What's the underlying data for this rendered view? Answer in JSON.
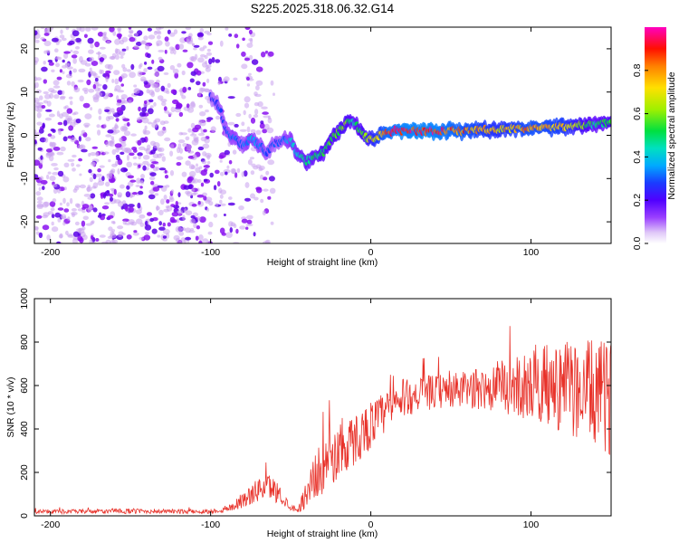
{
  "title": "S225.2025.318.06.32.G14",
  "chart_data": [
    {
      "type": "heatmap",
      "xlabel": "Height of straight line (km)",
      "ylabel": "Frequency (Hz)",
      "xlim": [
        -210,
        150
      ],
      "ylim": [
        -25,
        25
      ],
      "xticks": [
        -200,
        -100,
        0,
        100
      ],
      "yticks": [
        -20,
        -10,
        0,
        10,
        20
      ],
      "colorbar": {
        "label": "Normalized spectral amplitude",
        "range": [
          0,
          1
        ],
        "ticks": [
          0.0,
          0.2,
          0.4,
          0.6,
          0.8
        ],
        "tick_labels": [
          "0.0",
          "0.2",
          "0.4",
          "0.6",
          "0.8"
        ]
      },
      "ridge": {
        "height_km": [
          -100,
          -95,
          -90,
          -85,
          -80,
          -75,
          -70,
          -65,
          -60,
          -55,
          -50,
          -45,
          -40,
          -35,
          -30,
          -25,
          -20,
          -15,
          -10,
          -5,
          0,
          10,
          20,
          40,
          60,
          80,
          100,
          120,
          140,
          150
        ],
        "freq_hz": [
          9,
          7,
          1,
          -1,
          -2,
          -1,
          -2,
          -4,
          -2,
          -1,
          -1,
          -5,
          -6,
          -5,
          -4,
          -1,
          1,
          3,
          3,
          0,
          -1,
          1,
          1,
          1,
          1,
          1.5,
          1.5,
          2,
          2.5,
          3
        ],
        "amplitude": [
          0.25,
          0.3,
          0.3,
          0.35,
          0.3,
          0.4,
          0.35,
          0.3,
          0.3,
          0.3,
          0.4,
          0.45,
          0.5,
          0.5,
          0.55,
          0.55,
          0.6,
          0.6,
          0.5,
          0.6,
          0.7,
          0.9,
          0.95,
          0.95,
          0.85,
          0.75,
          0.85,
          0.8,
          0.5,
          0.6
        ]
      },
      "noise_region_km": [
        -210,
        -60
      ],
      "colors": [
        "#d0a8f0",
        "#7a00ff",
        "#1a3cff",
        "#00c8ff",
        "#00e060",
        "#a0f000",
        "#ffe000",
        "#ff8000",
        "#ff0000",
        "#ff00a0"
      ]
    },
    {
      "type": "line",
      "xlabel": "Height of straight line (km)",
      "ylabel": "SNR (10 * v/v)",
      "xlim": [
        -210,
        150
      ],
      "ylim": [
        0,
        1000
      ],
      "xticks": [
        -200,
        -100,
        0,
        100
      ],
      "yticks": [
        0,
        200,
        400,
        600,
        800,
        1000
      ],
      "series": [
        {
          "name": "SNR",
          "color": "#e8322a",
          "x": [
            -210,
            -180,
            -150,
            -120,
            -100,
            -90,
            -80,
            -70,
            -65,
            -60,
            -55,
            -50,
            -45,
            -40,
            -35,
            -30,
            -25,
            -20,
            -10,
            0,
            10,
            20,
            30,
            40,
            50,
            60,
            70,
            80,
            90,
            100,
            110,
            120,
            130,
            140,
            150
          ],
          "mean": [
            20,
            20,
            22,
            20,
            20,
            30,
            70,
            120,
            140,
            120,
            80,
            40,
            30,
            110,
            180,
            220,
            260,
            290,
            350,
            420,
            480,
            540,
            560,
            570,
            575,
            580,
            585,
            590,
            595,
            600,
            600,
            590,
            580,
            560,
            540
          ],
          "spread": [
            10,
            10,
            12,
            10,
            10,
            15,
            35,
            55,
            60,
            55,
            35,
            15,
            15,
            70,
            110,
            120,
            130,
            130,
            120,
            110,
            100,
            90,
            80,
            80,
            80,
            90,
            100,
            120,
            140,
            160,
            190,
            210,
            230,
            250,
            260
          ]
        }
      ]
    }
  ]
}
